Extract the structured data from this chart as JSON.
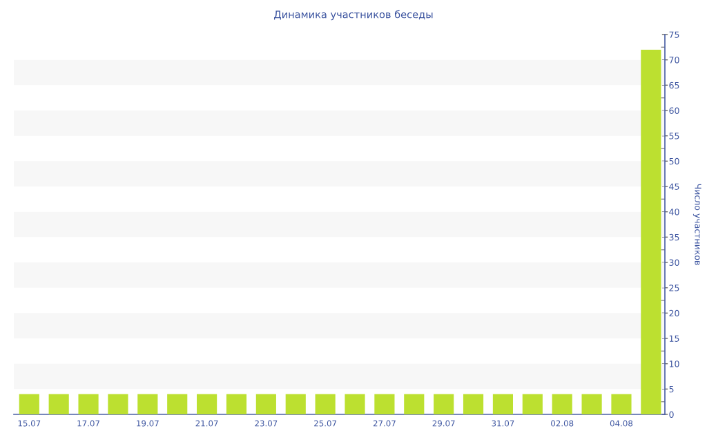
{
  "chart_data": {
    "type": "bar",
    "title": "Динамика участников беседы",
    "ylabel": "Число участников",
    "categories": [
      "15.07",
      null,
      "17.07",
      null,
      "19.07",
      null,
      "21.07",
      null,
      "23.07",
      null,
      "25.07",
      null,
      "27.07",
      null,
      "29.07",
      null,
      "31.07",
      null,
      "02.08",
      null,
      "04.08",
      null
    ],
    "values": [
      4,
      4,
      4,
      4,
      4,
      4,
      4,
      4,
      4,
      4,
      4,
      4,
      4,
      4,
      4,
      4,
      4,
      4,
      4,
      4,
      4,
      72
    ],
    "color": "#bce030",
    "ylim": [
      0,
      75
    ],
    "yticks": [
      0,
      {
        "value": 2.5,
        "label": null
      },
      5,
      {
        "value": 7.5,
        "label": null
      },
      10,
      {
        "value": 12.5,
        "label": null
      },
      15,
      {
        "value": 17.5,
        "label": null
      },
      20,
      {
        "value": 22.5,
        "label": null
      },
      25,
      {
        "value": 27.5,
        "label": null
      },
      30,
      {
        "value": 32.5,
        "label": null
      },
      35,
      {
        "value": 37.5,
        "label": null
      },
      40,
      {
        "value": 42.5,
        "label": null
      },
      45,
      {
        "value": 47.5,
        "label": null
      },
      50,
      {
        "value": 52.5,
        "label": null
      },
      55,
      {
        "value": 57.5,
        "label": null
      },
      60,
      {
        "value": 62.5,
        "label": null
      },
      65,
      {
        "value": 67.5,
        "label": null
      },
      70,
      {
        "value": 72.5,
        "label": null
      },
      75
    ],
    "bands": [
      {
        "axis": "y",
        "from": 5,
        "to": 10,
        "color": "#f7f7f7"
      },
      {
        "axis": "y",
        "from": 15,
        "to": 20,
        "color": "#f7f7f7"
      },
      {
        "axis": "y",
        "from": 25,
        "to": 30,
        "color": "#f7f7f7"
      },
      {
        "axis": "y",
        "from": 35,
        "to": 40,
        "color": "#f7f7f7"
      },
      {
        "axis": "y",
        "from": 45,
        "to": 50,
        "color": "#f7f7f7"
      },
      {
        "axis": "y",
        "from": 55,
        "to": 60,
        "color": "#f7f7f7"
      },
      {
        "axis": "y",
        "from": 65,
        "to": 70,
        "color": "#f7f7f7"
      }
    ],
    "grid": false
  }
}
